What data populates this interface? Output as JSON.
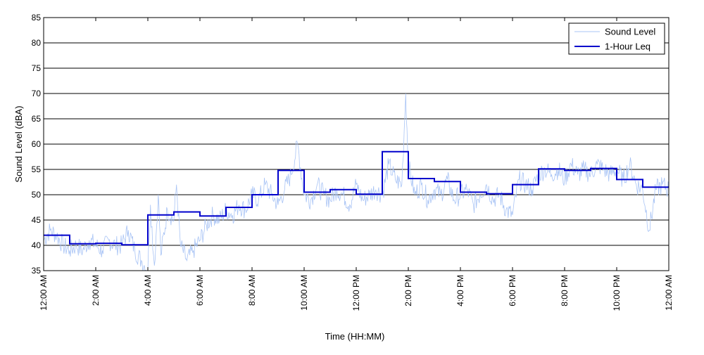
{
  "chart_data": {
    "type": "line",
    "xlabel": "Time (HH:MM)",
    "ylabel": "Sound Level (dBA)",
    "xlim": [
      0,
      24
    ],
    "ylim": [
      35,
      85
    ],
    "y_ticks": [
      35,
      40,
      45,
      50,
      55,
      60,
      65,
      70,
      75,
      80,
      85
    ],
    "x_ticks": [
      {
        "hour": 0,
        "label": "12:00 AM"
      },
      {
        "hour": 2,
        "label": "2:00 AM"
      },
      {
        "hour": 4,
        "label": "4:00 AM"
      },
      {
        "hour": 6,
        "label": "6:00 AM"
      },
      {
        "hour": 8,
        "label": "8:00 AM"
      },
      {
        "hour": 10,
        "label": "10:00 AM"
      },
      {
        "hour": 12,
        "label": "12:00 PM"
      },
      {
        "hour": 14,
        "label": "2:00 PM"
      },
      {
        "hour": 16,
        "label": "4:00 PM"
      },
      {
        "hour": 18,
        "label": "6:00 PM"
      },
      {
        "hour": 20,
        "label": "8:00 PM"
      },
      {
        "hour": 22,
        "label": "10:00 PM"
      },
      {
        "hour": 24,
        "label": "12:00 AM"
      }
    ],
    "grid": "horizontal",
    "legend_position": "top-right",
    "series": [
      {
        "name": "Sound Level",
        "color": "#a9c4f5",
        "style": "thin-line",
        "x": [
          0,
          0.25,
          0.5,
          0.75,
          1,
          1.25,
          1.5,
          1.75,
          2,
          2.25,
          2.5,
          2.75,
          3,
          3.25,
          3.5,
          3.75,
          4,
          4.1,
          4.25,
          4.4,
          4.5,
          4.75,
          5,
          5.1,
          5.25,
          5.5,
          5.75,
          6,
          6.25,
          6.5,
          6.75,
          7,
          7.25,
          7.5,
          7.75,
          8,
          8.25,
          8.5,
          8.75,
          9,
          9.25,
          9.5,
          9.75,
          10,
          10.25,
          10.5,
          10.75,
          11,
          11.25,
          11.5,
          11.75,
          12,
          12.25,
          12.5,
          12.75,
          13,
          13.25,
          13.5,
          13.75,
          13.9,
          14,
          14.25,
          14.5,
          14.75,
          15,
          15.25,
          15.5,
          15.75,
          16,
          16.25,
          16.5,
          16.75,
          17,
          17.25,
          17.5,
          17.75,
          18,
          18.25,
          18.5,
          18.75,
          19,
          19.25,
          19.5,
          19.75,
          20,
          20.25,
          20.5,
          20.75,
          21,
          21.25,
          21.5,
          21.75,
          22,
          22.25,
          22.5,
          22.75,
          23,
          23.25,
          23.5,
          23.75,
          24
        ],
        "y": [
          41,
          43,
          42,
          40,
          39,
          40,
          39,
          41,
          40,
          39,
          41,
          40,
          40,
          43,
          39,
          37,
          35,
          48,
          36,
          50,
          38,
          47,
          45,
          52,
          40,
          37,
          39,
          41,
          44,
          46,
          45,
          47,
          46,
          48,
          47,
          50,
          49,
          52,
          50,
          48,
          51,
          54,
          60,
          50,
          49,
          52,
          50,
          49,
          51,
          50,
          48,
          52,
          49,
          50,
          51,
          50,
          56,
          53,
          52,
          70,
          56,
          50,
          52,
          49,
          51,
          50,
          53,
          49,
          50,
          51,
          48,
          50,
          52,
          49,
          50,
          47,
          46,
          53,
          52,
          51,
          54,
          55,
          54,
          55,
          53,
          56,
          54,
          55,
          54,
          56,
          55,
          54,
          55,
          53,
          56,
          52,
          51,
          43,
          51,
          52,
          51
        ]
      },
      {
        "name": "1-Hour Leq",
        "color": "#0000cc",
        "style": "step",
        "hourly_values": [
          42,
          40.3,
          40.4,
          40.1,
          46,
          46.6,
          45.8,
          47.5,
          50,
          54.8,
          50.5,
          51,
          50.1,
          58.5,
          53.2,
          52.6,
          50.5,
          50.2,
          52,
          55.1,
          54.8,
          55.2,
          53,
          51.5
        ]
      }
    ]
  }
}
